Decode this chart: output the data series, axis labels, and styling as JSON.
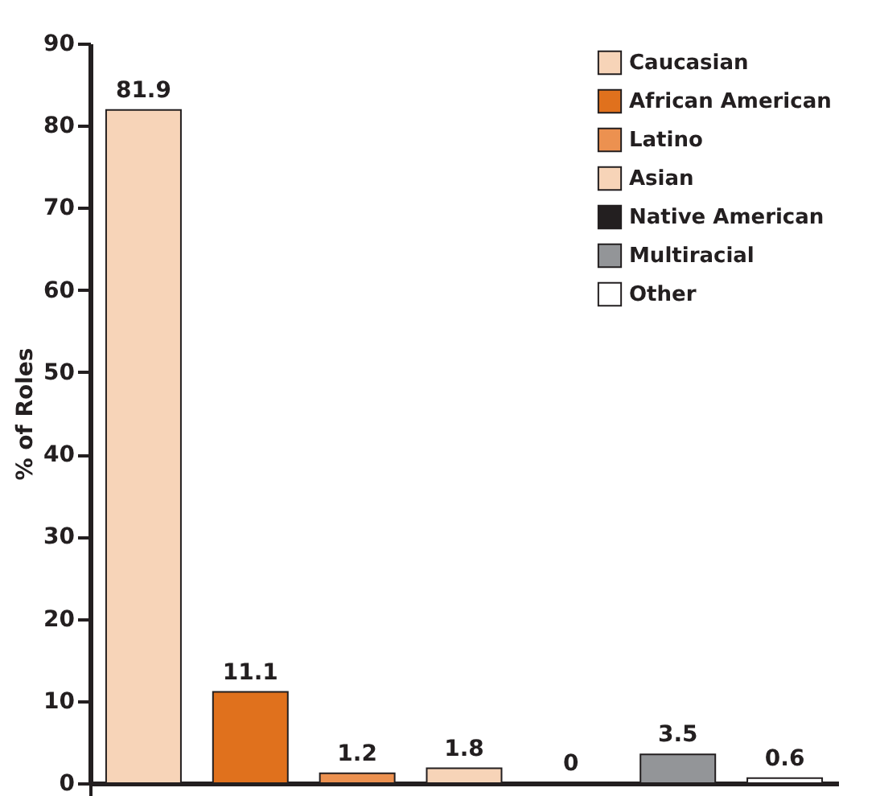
{
  "chart_data": {
    "type": "bar",
    "ylabel": "% of Roles",
    "categories": [
      null
    ],
    "series": [
      {
        "name": "Caucasian",
        "color": "#f7d4b8",
        "values": [
          81.9
        ]
      },
      {
        "name": "African American",
        "color": "#e0711d",
        "values": [
          11.1
        ]
      },
      {
        "name": "Latino",
        "color": "#ec9150",
        "values": [
          1.2
        ]
      },
      {
        "name": "Asian",
        "color": "#f7d4b8",
        "values": [
          1.8
        ]
      },
      {
        "name": "Native American",
        "color": "#231f20",
        "values": [
          0
        ]
      },
      {
        "name": "Multiracial",
        "color": "#939598",
        "values": [
          3.5
        ]
      },
      {
        "name": "Other",
        "color": "#ffffff",
        "values": [
          0.6
        ]
      }
    ],
    "ylim": [
      0,
      90
    ],
    "yticks": [
      0,
      10,
      20,
      30,
      40,
      50,
      60,
      70,
      80,
      90
    ],
    "data_labels": true,
    "legend": "top right",
    "tick_labels": "y",
    "grid": false
  }
}
